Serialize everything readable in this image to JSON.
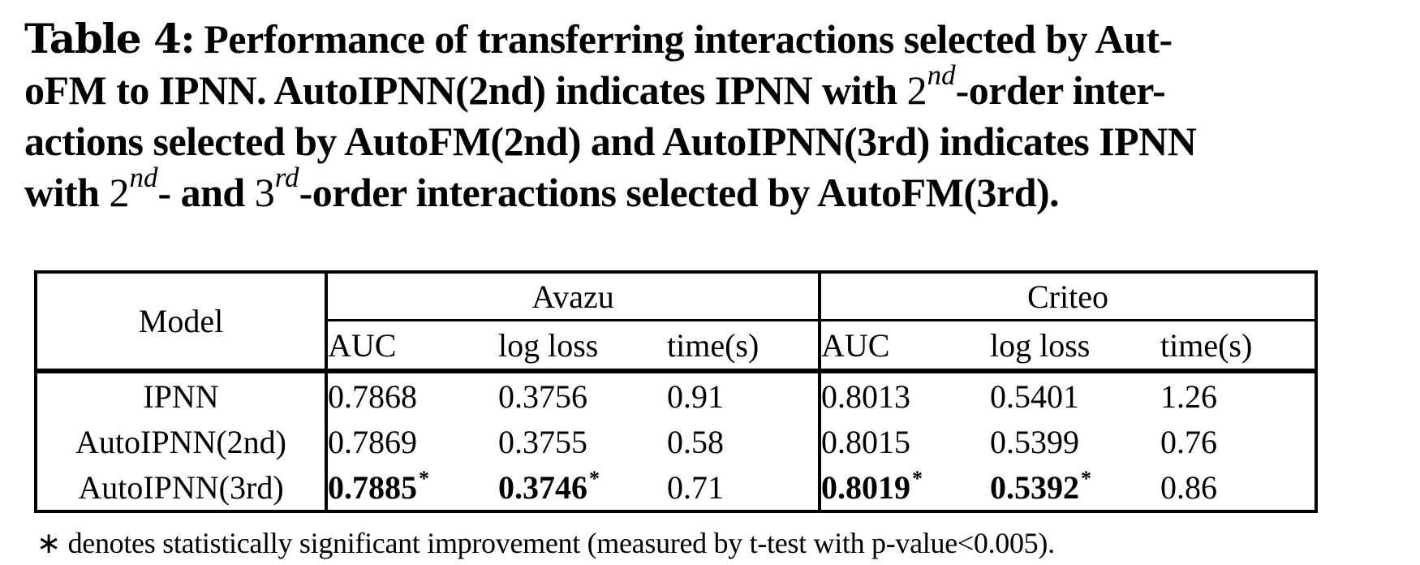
{
  "caption": {
    "label": "Table 4:",
    "segments": [
      {
        "text": " Performance of transferring interactions selected by Aut-\noFM to IPNN. AutoIPNN(2nd) indicates IPNN with "
      },
      {
        "base": "2",
        "sup": "nd"
      },
      {
        "text": "-order inter-\nactions selected by AutoFM(2nd) and AutoIPNN(3rd) indicates IPNN\nwith "
      },
      {
        "base": "2",
        "sup": "nd"
      },
      {
        "text": "- and "
      },
      {
        "base": "3",
        "sup": "rd"
      },
      {
        "text": "-order interactions selected by AutoFM(3rd)."
      }
    ]
  },
  "table": {
    "model_header": "Model",
    "groups": [
      "Avazu",
      "Criteo"
    ],
    "subheaders": [
      "AUC",
      "log loss",
      "time(s)",
      "AUC",
      "log loss",
      "time(s)"
    ],
    "rows": [
      {
        "model": "IPNN",
        "cells": [
          {
            "v": "0.7868"
          },
          {
            "v": "0.3756"
          },
          {
            "v": "0.91"
          },
          {
            "v": "0.8013"
          },
          {
            "v": "0.5401"
          },
          {
            "v": "1.26"
          }
        ]
      },
      {
        "model": "AutoIPNN(2nd)",
        "cells": [
          {
            "v": "0.7869"
          },
          {
            "v": "0.3755"
          },
          {
            "v": "0.58"
          },
          {
            "v": "0.8015"
          },
          {
            "v": "0.5399"
          },
          {
            "v": "0.76"
          }
        ]
      },
      {
        "model": "AutoIPNN(3rd)",
        "cells": [
          {
            "v": "0.7885",
            "star": "*"
          },
          {
            "v": "0.3746",
            "star": "*"
          },
          {
            "v": "0.71"
          },
          {
            "v": "0.8019",
            "star": "*"
          },
          {
            "v": "0.5392",
            "star": "*"
          },
          {
            "v": "0.86"
          }
        ]
      }
    ]
  },
  "footnote": {
    "text": "∗ denotes statistically significant improvement (measured by t-test with p-value<0.005)."
  },
  "colors": {
    "text": "#000000",
    "background": "#ffffff",
    "border": "#000000"
  },
  "chart_data": {
    "type": "table",
    "title": "Table 4: Performance of transferring interactions selected by AutoFM to IPNN",
    "columns": [
      "Model",
      "Avazu AUC",
      "Avazu log loss",
      "Avazu time(s)",
      "Criteo AUC",
      "Criteo log loss",
      "Criteo time(s)"
    ],
    "rows": [
      [
        "IPNN",
        0.7868,
        0.3756,
        0.91,
        0.8013,
        0.5401,
        1.26
      ],
      [
        "AutoIPNN(2nd)",
        0.7869,
        0.3755,
        0.58,
        0.8015,
        0.5399,
        0.76
      ],
      [
        "AutoIPNN(3rd)",
        0.7885,
        0.3746,
        0.71,
        0.8019,
        0.5392,
        0.86
      ]
    ],
    "bold_significant": [
      {
        "row": "AutoIPNN(3rd)",
        "columns": [
          "Avazu AUC",
          "Avazu log loss",
          "Criteo AUC",
          "Criteo log loss"
        ],
        "marker": "*"
      }
    ]
  }
}
